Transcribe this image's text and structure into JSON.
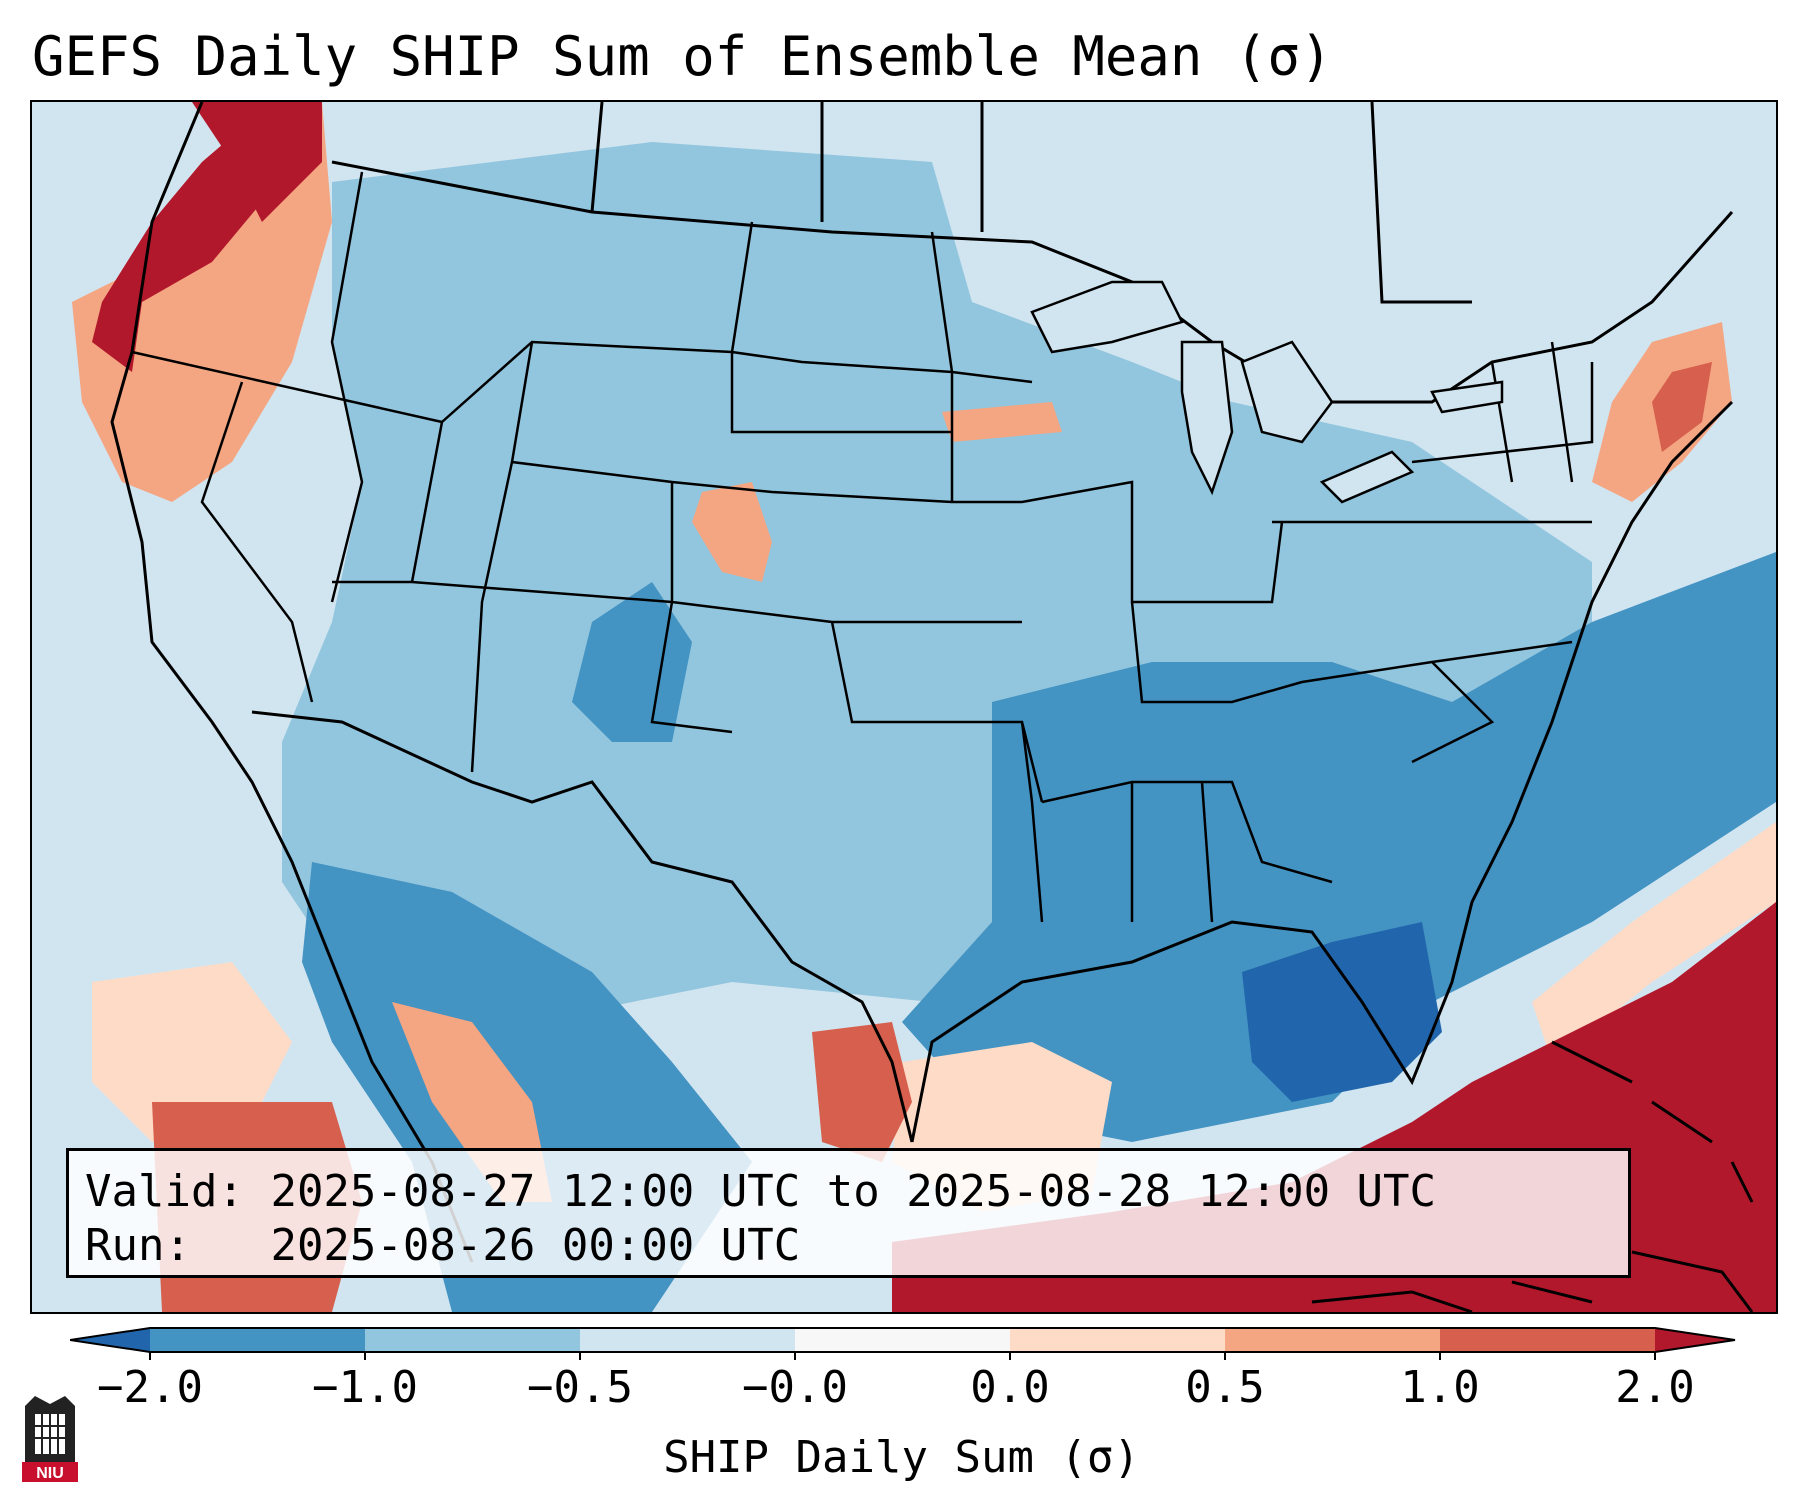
{
  "title": "GEFS Daily SHIP Sum of Ensemble Mean (σ)",
  "info": {
    "valid_label": "Valid:",
    "valid_value": "2025-08-27 12:00 UTC to 2025-08-28 12:00 UTC",
    "run_label": "Run:",
    "run_value": "2025-08-26 00:00 UTC"
  },
  "colorbar": {
    "label": "SHIP Daily Sum (σ)",
    "ticks": [
      "−2.0",
      "−1.0",
      "−0.5",
      "−0.0",
      "0.0",
      "0.5",
      "1.0",
      "2.0"
    ],
    "colors": [
      "#4393c3",
      "#92c5de",
      "#d1e5f0",
      "#f7f7f7",
      "#fddbc7",
      "#f4a582",
      "#d6604d"
    ],
    "under_color": "#2166ac",
    "over_color": "#b2182b"
  },
  "palette": {
    "strong_neg": "#2166ac",
    "neg": "#4393c3",
    "mid_neg": "#92c5de",
    "light_neg": "#d1e5f0",
    "light_pos": "#fddbc7",
    "mid_pos": "#f4a582",
    "pos": "#d6604d",
    "strong_pos": "#b2182b"
  },
  "logo_text": "NIU"
}
